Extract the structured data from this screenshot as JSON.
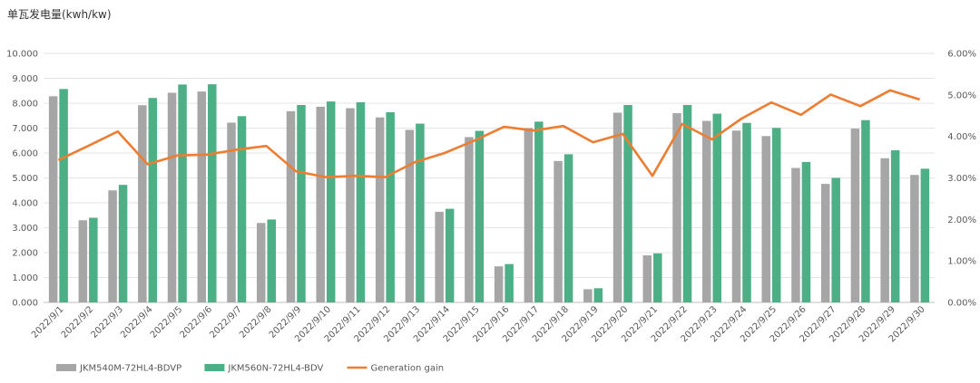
{
  "chart_data": {
    "type": "bar",
    "unit_label": "单瓦发电量(kwh/kw)",
    "categories": [
      "2022/9/1",
      "2022/9/2",
      "2022/9/3",
      "2022/9/4",
      "2022/9/5",
      "2022/9/6",
      "2022/9/7",
      "2022/9/8",
      "2022/9/9",
      "2022/9/10",
      "2022/9/11",
      "2022/9/12",
      "2022/9/13",
      "2022/9/14",
      "2022/9/15",
      "2022/9/16",
      "2022/9/17",
      "2022/9/18",
      "2022/9/19",
      "2022/9/20",
      "2022/9/21",
      "2022/9/22",
      "2022/9/23",
      "2022/9/24",
      "2022/9/25",
      "2022/9/26",
      "2022/9/27",
      "2022/9/28",
      "2022/9/29",
      "2022/9/30"
    ],
    "ylim": [
      0,
      10
    ],
    "y_ticks": [
      "0.000",
      "1.000",
      "2.000",
      "3.000",
      "4.000",
      "5.000",
      "6.000",
      "7.000",
      "8.000",
      "9.000",
      "10.000"
    ],
    "y2lim": [
      0,
      0.06
    ],
    "y2_ticks": [
      "0.00%",
      "1.00%",
      "2.00%",
      "3.00%",
      "4.00%",
      "5.00%",
      "6.00%"
    ],
    "grid": true,
    "legend_position": "bottom-left",
    "series": [
      {
        "name": "JKM540M-72HL4-BDVP",
        "type": "bar",
        "axis": "left",
        "color": "#a6a6a6",
        "values": [
          8.28,
          3.3,
          4.5,
          7.92,
          8.42,
          8.47,
          7.22,
          3.19,
          7.68,
          7.86,
          7.8,
          7.43,
          6.93,
          3.64,
          6.64,
          1.45,
          7.0,
          5.68,
          0.53,
          7.62,
          1.89,
          7.6,
          7.29,
          6.9,
          6.68,
          5.4,
          4.76,
          6.98,
          5.79,
          5.12
        ]
      },
      {
        "name": "JKM560N-72HL4-BDV",
        "type": "bar",
        "axis": "left",
        "color": "#4caf85",
        "values": [
          8.57,
          3.4,
          4.72,
          8.21,
          8.75,
          8.76,
          7.48,
          3.33,
          7.93,
          8.07,
          8.04,
          7.64,
          7.18,
          3.76,
          6.89,
          1.54,
          7.26,
          5.95,
          0.57,
          7.93,
          1.97,
          7.93,
          7.58,
          7.21,
          7.01,
          5.64,
          5.0,
          7.32,
          6.11,
          5.37
        ]
      },
      {
        "name": "Generation gain",
        "type": "line",
        "axis": "right",
        "color": "#ed7d31",
        "values": [
          0.0343,
          0.0377,
          0.0412,
          0.0333,
          0.0354,
          0.0356,
          0.0368,
          0.0377,
          0.0316,
          0.0302,
          0.0305,
          0.0302,
          0.0338,
          0.036,
          0.039,
          0.0423,
          0.0414,
          0.0425,
          0.0386,
          0.0406,
          0.0305,
          0.043,
          0.0393,
          0.0443,
          0.0482,
          0.0452,
          0.0501,
          0.0473,
          0.0511,
          0.0489
        ]
      }
    ]
  }
}
